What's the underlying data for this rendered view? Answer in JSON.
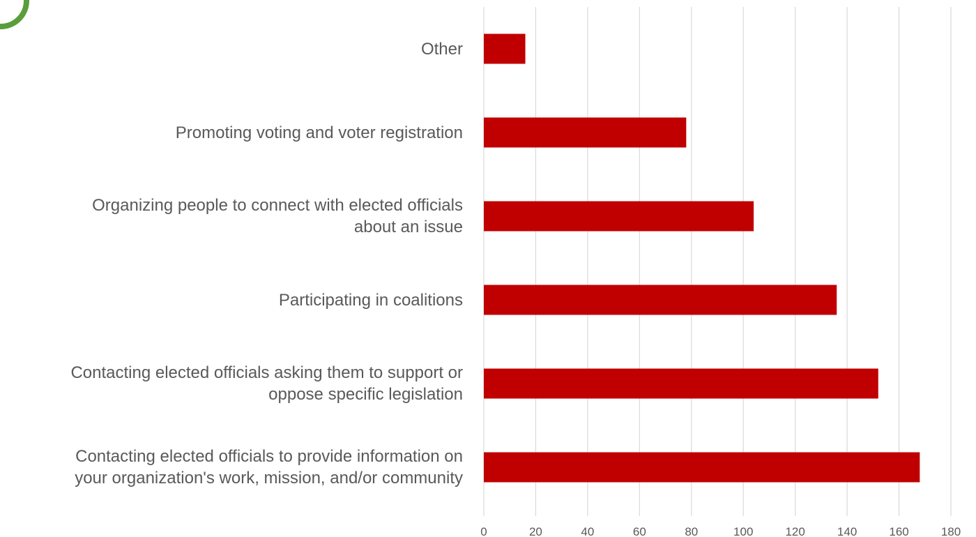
{
  "chart_data": {
    "type": "bar",
    "orientation": "horizontal",
    "categories": [
      "Other",
      "Promoting voting and voter registration",
      "Organizing people to connect with elected officials about an issue",
      "Participating in coalitions",
      "Contacting elected officials asking them to support or oppose specific legislation",
      "Contacting elected officials to provide information on your organization's work, mission, and/or community"
    ],
    "category_lines": [
      [
        "Other"
      ],
      [
        "Promoting voting and voter registration"
      ],
      [
        "Organizing people to connect with elected officials",
        "about an issue"
      ],
      [
        "Participating in coalitions"
      ],
      [
        "Contacting elected officials asking them to support or",
        "oppose specific legislation"
      ],
      [
        "Contacting elected officials to provide information on",
        "your organization's work, mission, and/or community"
      ]
    ],
    "values": [
      16,
      78,
      104,
      136,
      152,
      168
    ],
    "xlim": [
      0,
      180
    ],
    "xticks": [
      0,
      20,
      40,
      60,
      80,
      100,
      120,
      140,
      160,
      180
    ],
    "grid": true,
    "bar_color": "#c00000",
    "grid_color": "#d9d9d9"
  }
}
